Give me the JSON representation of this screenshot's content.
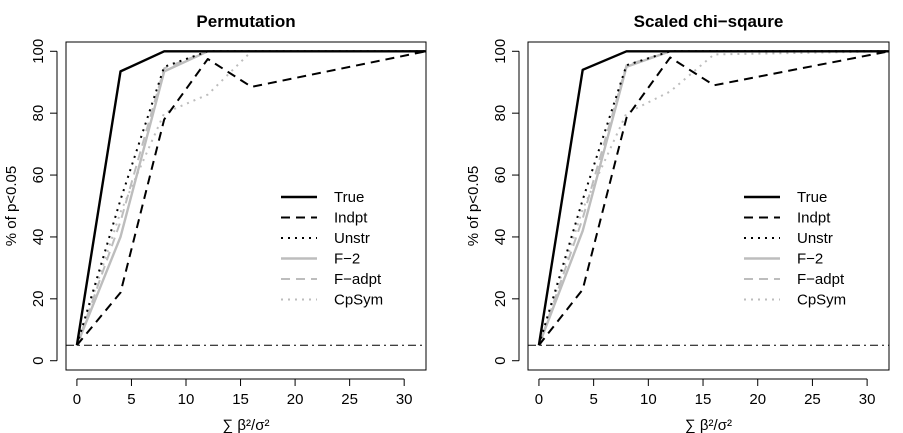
{
  "chart_data": [
    {
      "type": "line",
      "title": "Permutation",
      "xlabel": "∑ β²/σ²",
      "ylabel": "% of p<0.05",
      "xlim": [
        -1,
        32
      ],
      "ylim": [
        -3,
        103
      ],
      "x": [
        0,
        4,
        8,
        12,
        16,
        32
      ],
      "xticks": [
        "0",
        "5",
        "10",
        "15",
        "20",
        "25",
        "30"
      ],
      "yticks": [
        "0",
        "20",
        "40",
        "60",
        "80",
        "100"
      ],
      "reference_line": {
        "y": 5,
        "style": "dot-dash"
      },
      "legend_position": "right-middle",
      "series": [
        {
          "name": "True",
          "values": [
            5,
            93.5,
            100,
            100,
            100,
            100
          ],
          "color": "#000000",
          "dash": "solid"
        },
        {
          "name": "Indpt",
          "values": [
            5,
            22,
            78,
            97.5,
            88.5,
            100
          ],
          "color": "#000000",
          "dash": "dashed"
        },
        {
          "name": "Unstr",
          "values": [
            5,
            52,
            95,
            100,
            100,
            100
          ],
          "color": "#000000",
          "dash": "dotted"
        },
        {
          "name": "F−2",
          "values": [
            5,
            40,
            93.5,
            100,
            100,
            100
          ],
          "color": "#bdbdbd",
          "dash": "solid"
        },
        {
          "name": "F−adpt",
          "values": [
            5,
            45,
            94.5,
            100,
            100,
            100
          ],
          "color": "#bdbdbd",
          "dash": "dashed"
        },
        {
          "name": "CpSym",
          "values": [
            5,
            48,
            80,
            86,
            100,
            100
          ],
          "color": "#bdbdbd",
          "dash": "dotted"
        }
      ]
    },
    {
      "type": "line",
      "title": "Scaled chi−sqaure",
      "xlabel": "∑ β²/σ²",
      "ylabel": "% of p<0.05",
      "xlim": [
        -1,
        32
      ],
      "ylim": [
        -3,
        103
      ],
      "x": [
        0,
        4,
        8,
        12,
        16,
        32
      ],
      "xticks": [
        "0",
        "5",
        "10",
        "15",
        "20",
        "25",
        "30"
      ],
      "yticks": [
        "0",
        "20",
        "40",
        "60",
        "80",
        "100"
      ],
      "reference_line": {
        "y": 5,
        "style": "dot-dash"
      },
      "legend_position": "right-middle",
      "series": [
        {
          "name": "True",
          "values": [
            5,
            94,
            100,
            100,
            100,
            100
          ],
          "color": "#000000",
          "dash": "solid"
        },
        {
          "name": "Indpt",
          "values": [
            5,
            23,
            78.5,
            98,
            89,
            100
          ],
          "color": "#000000",
          "dash": "dashed"
        },
        {
          "name": "Unstr",
          "values": [
            5,
            52,
            95.5,
            100,
            100,
            100
          ],
          "color": "#000000",
          "dash": "dotted"
        },
        {
          "name": "F−2",
          "values": [
            5,
            42,
            95,
            100,
            100,
            100
          ],
          "color": "#bdbdbd",
          "dash": "solid"
        },
        {
          "name": "F−adpt",
          "values": [
            5,
            46,
            95.5,
            100,
            100,
            100
          ],
          "color": "#bdbdbd",
          "dash": "dashed"
        },
        {
          "name": "CpSym",
          "values": [
            5,
            49,
            80,
            87,
            99,
            100
          ],
          "color": "#bdbdbd",
          "dash": "dotted"
        }
      ]
    }
  ]
}
